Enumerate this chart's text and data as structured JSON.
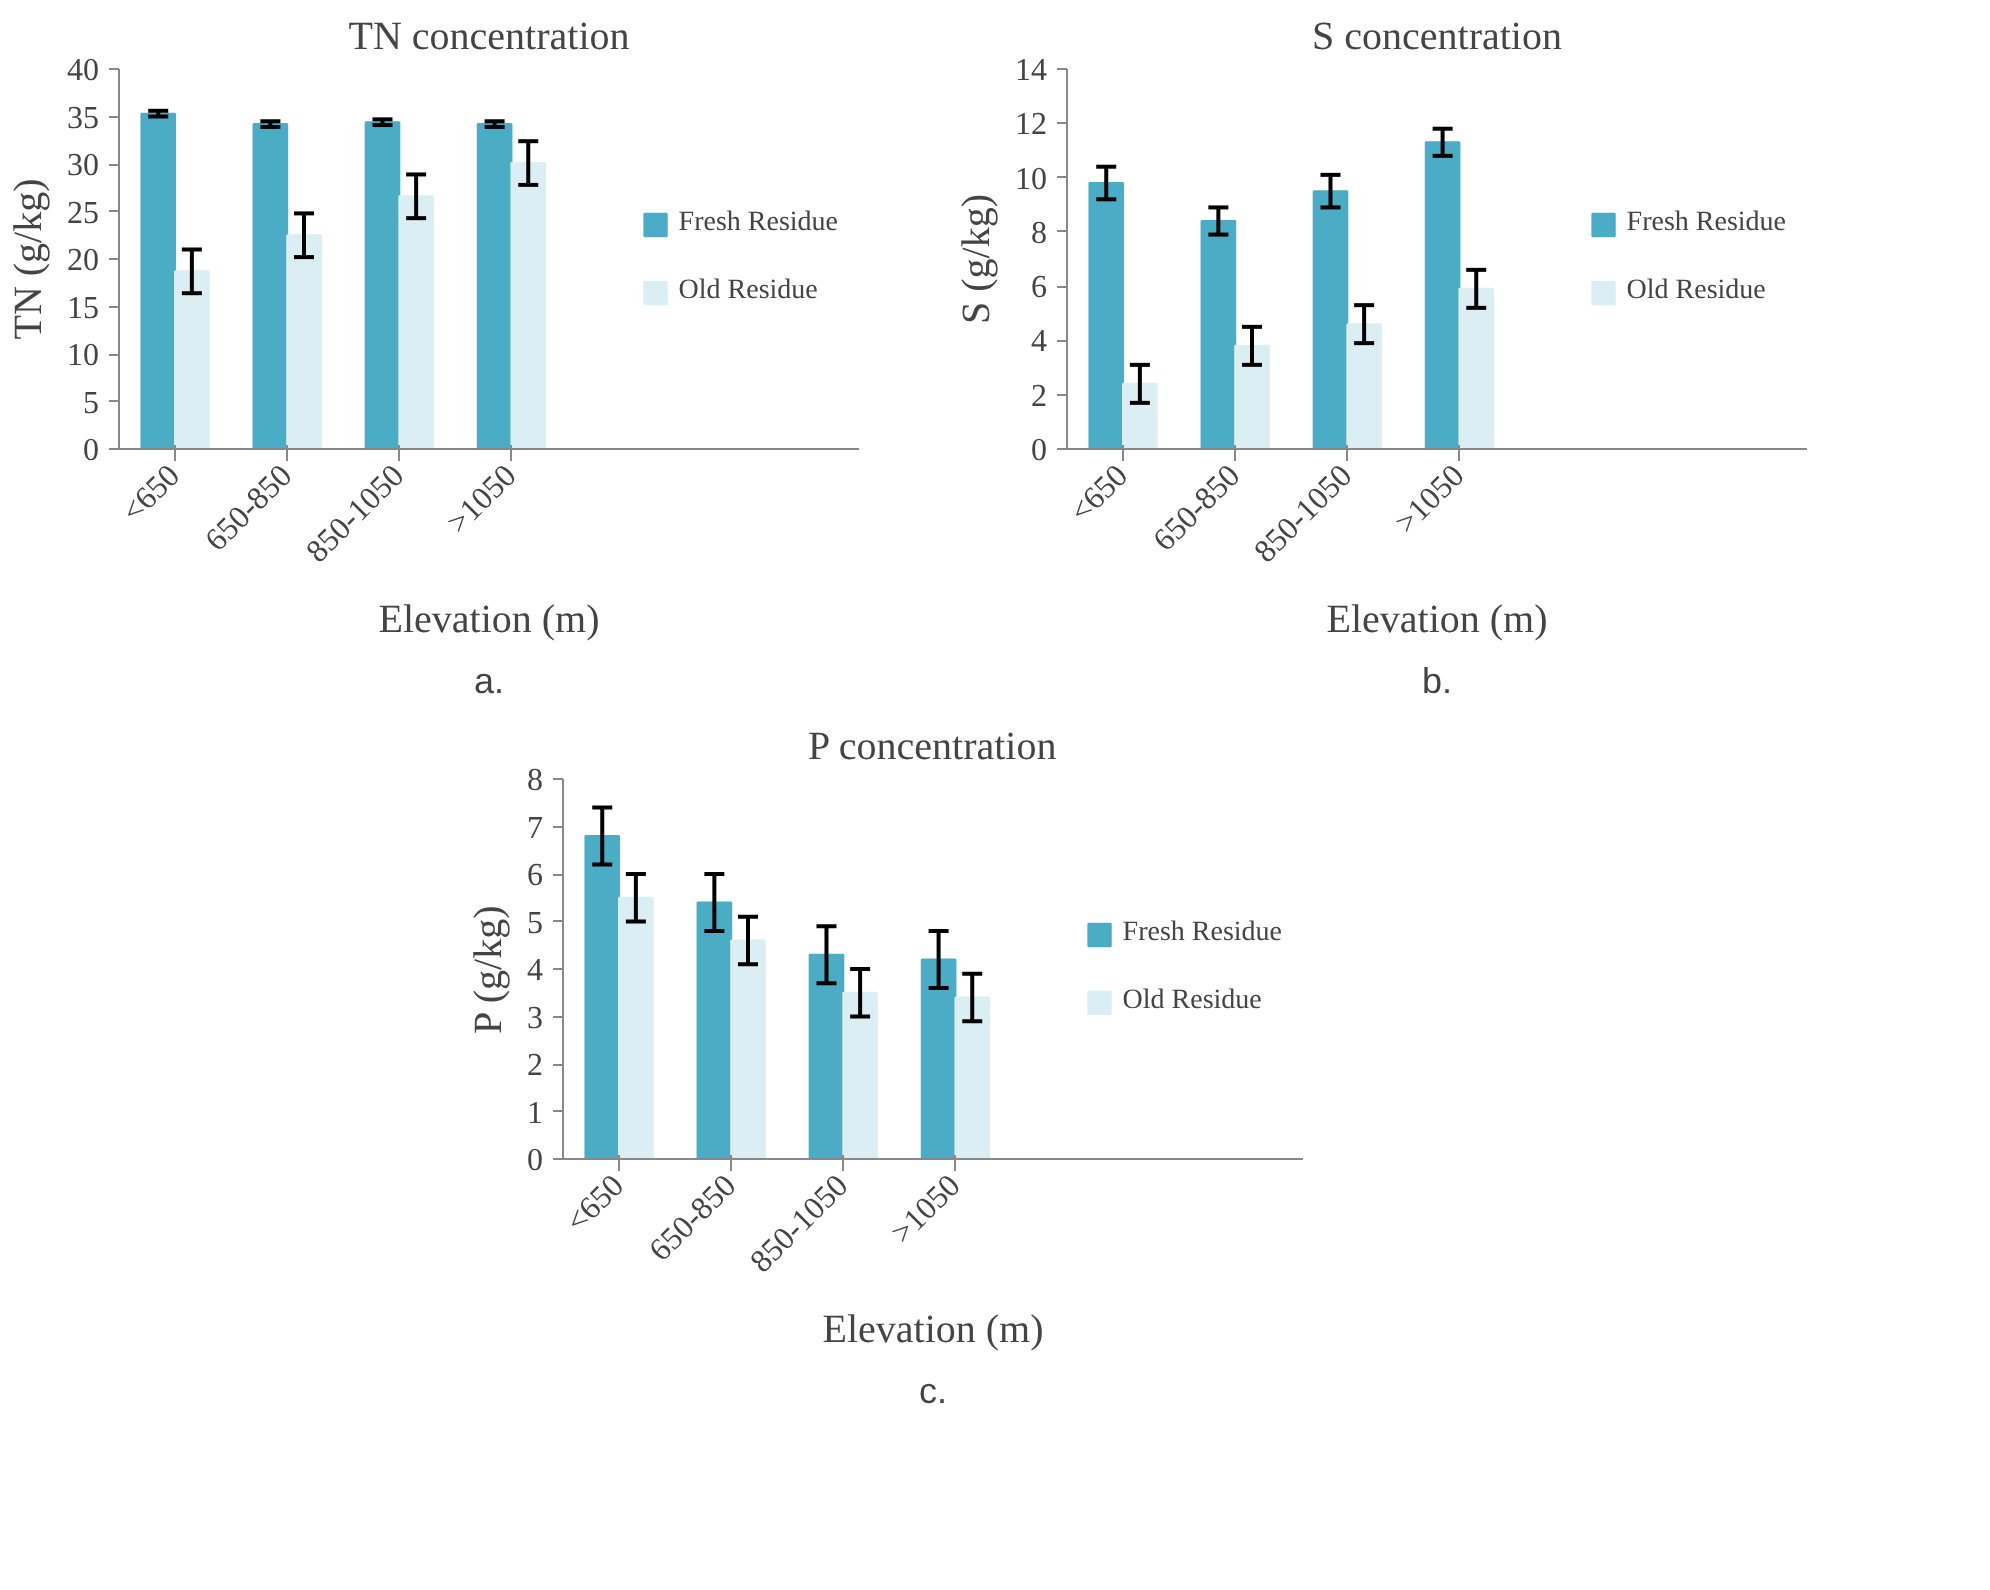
{
  "chart_data": [
    {
      "type": "bar",
      "title": "TN concentration",
      "xlabel": "Elevation (m)",
      "ylabel": "TN (g/kg)",
      "categories": [
        "<650",
        "650-850",
        "850-1050",
        ">1050"
      ],
      "ylim": [
        0,
        40
      ],
      "yticks": [
        0,
        5,
        10,
        15,
        20,
        25,
        30,
        35,
        40
      ],
      "legend": "right",
      "annotations": [
        "a."
      ],
      "series": [
        {
          "name": "Fresh Residue",
          "color": "#4bacc6",
          "values": [
            35.3,
            34.2,
            34.4,
            34.2
          ],
          "errors": [
            0.3,
            0.3,
            0.3,
            0.3
          ]
        },
        {
          "name": "Old Residue",
          "color": "#daeef3",
          "values": [
            18.7,
            22.5,
            26.6,
            30.1
          ],
          "errors": [
            2.3,
            2.3,
            2.3,
            2.3
          ]
        }
      ]
    },
    {
      "type": "bar",
      "title": "S concentration",
      "xlabel": "Elevation (m)",
      "ylabel": "S (g/kg)",
      "categories": [
        "<650",
        "650-850",
        "850-1050",
        ">1050"
      ],
      "ylim": [
        0,
        14
      ],
      "yticks": [
        0,
        2,
        4,
        6,
        8,
        10,
        12,
        14
      ],
      "legend": "right",
      "annotations": [
        "b."
      ],
      "series": [
        {
          "name": "Fresh Residue",
          "color": "#4bacc6",
          "values": [
            9.8,
            8.4,
            9.5,
            11.3
          ],
          "errors": [
            0.6,
            0.5,
            0.6,
            0.5
          ]
        },
        {
          "name": "Old Residue",
          "color": "#daeef3",
          "values": [
            2.4,
            3.8,
            4.6,
            5.9
          ],
          "errors": [
            0.7,
            0.7,
            0.7,
            0.7
          ]
        }
      ]
    },
    {
      "type": "bar",
      "title": "P concentration",
      "xlabel": "Elevation (m)",
      "ylabel": "P (g/kg)",
      "categories": [
        "<650",
        "650-850",
        "850-1050",
        ">1050"
      ],
      "ylim": [
        0,
        8
      ],
      "yticks": [
        0,
        1,
        2,
        3,
        4,
        5,
        6,
        7,
        8
      ],
      "legend": "right",
      "annotations": [
        "c."
      ],
      "series": [
        {
          "name": "Fresh Residue",
          "color": "#4bacc6",
          "values": [
            6.8,
            5.4,
            4.3,
            4.2
          ],
          "errors": [
            0.6,
            0.6,
            0.6,
            0.6
          ]
        },
        {
          "name": "Old Residue",
          "color": "#daeef3",
          "values": [
            5.5,
            4.6,
            3.5,
            3.4
          ],
          "errors": [
            0.5,
            0.5,
            0.5,
            0.5
          ]
        }
      ]
    }
  ]
}
